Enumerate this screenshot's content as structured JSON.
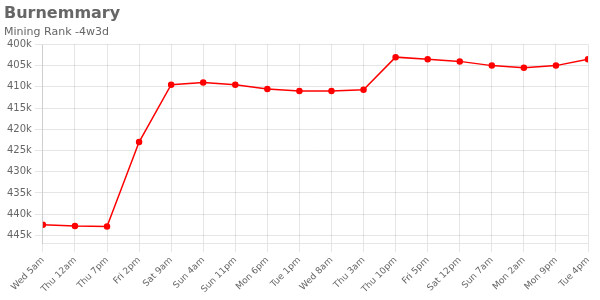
{
  "chart_data": {
    "type": "line",
    "title": "Burnemmary",
    "subtitle": "Mining Rank -4w3d",
    "categories": [
      "Wed 5am",
      "Thu 12am",
      "Thu 7pm",
      "Fri 2pm",
      "Sat 9am",
      "Sun 4am",
      "Sun 11pm",
      "Mon 6pm",
      "Tue 1pm",
      "Wed 8am",
      "Thu 3am",
      "Thu 10pm",
      "Fri 5pm",
      "Sat 12pm",
      "Sun 7am",
      "Mon 2am",
      "Mon 9pm",
      "Tue 4pm"
    ],
    "values": [
      442500,
      442800,
      442900,
      423000,
      409500,
      409000,
      409500,
      410500,
      411000,
      411000,
      410700,
      403000,
      403500,
      404000,
      405000,
      405500,
      405000,
      403500
    ],
    "color": "#ff0000",
    "marker": "circle",
    "line_style": "solid",
    "ylim": [
      447000,
      400000
    ],
    "yticks": [
      {
        "value": 400000,
        "label": "400k"
      },
      {
        "value": 405000,
        "label": "405k"
      },
      {
        "value": 410000,
        "label": "410k"
      },
      {
        "value": 415000,
        "label": "415k"
      },
      {
        "value": 420000,
        "label": "420k"
      },
      {
        "value": 425000,
        "label": "425k"
      },
      {
        "value": 430000,
        "label": "430k"
      },
      {
        "value": 435000,
        "label": "435k"
      },
      {
        "value": 440000,
        "label": "440k"
      },
      {
        "value": 445000,
        "label": "445k"
      }
    ],
    "grid": true
  }
}
